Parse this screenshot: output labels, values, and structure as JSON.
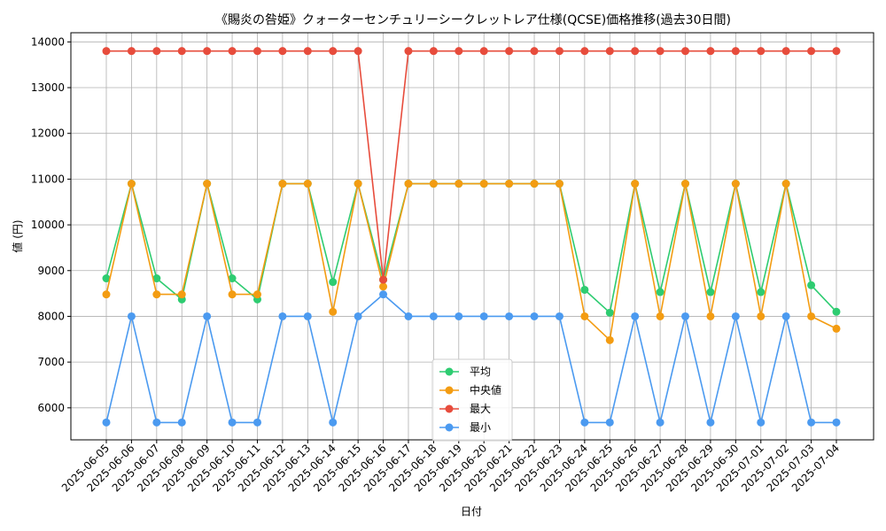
{
  "chart_data": {
    "type": "line",
    "title": "《賜炎の咎姫》クォーターセンチュリーシークレットレア仕様(QCSE)価格推移(過去30日間)",
    "xlabel": "日付",
    "ylabel": "値 (円)",
    "ylim": [
      5300,
      14200
    ],
    "yticks": [
      6000,
      7000,
      8000,
      9000,
      10000,
      11000,
      12000,
      13000,
      14000
    ],
    "grid": true,
    "legend_position": "bottom-center",
    "categories": [
      "2025-06-05",
      "2025-06-06",
      "2025-06-07",
      "2025-06-08",
      "2025-06-09",
      "2025-06-10",
      "2025-06-11",
      "2025-06-12",
      "2025-06-13",
      "2025-06-14",
      "2025-06-15",
      "2025-06-16",
      "2025-06-17",
      "2025-06-18",
      "2025-06-19",
      "2025-06-20",
      "2025-06-21",
      "2025-06-22",
      "2025-06-23",
      "2025-06-24",
      "2025-06-25",
      "2025-06-26",
      "2025-06-27",
      "2025-06-28",
      "2025-06-29",
      "2025-06-30",
      "2025-07-01",
      "2025-07-02",
      "2025-07-03",
      "2025-07-04"
    ],
    "series": [
      {
        "name": "平均",
        "color": "#2ecc71",
        "values": [
          8830,
          10900,
          8830,
          8370,
          10900,
          8830,
          8370,
          10900,
          10900,
          8750,
          10900,
          8800,
          10900,
          10900,
          10900,
          10900,
          10900,
          10900,
          10900,
          8580,
          8080,
          10900,
          8530,
          10900,
          8530,
          10900,
          8530,
          10900,
          8680,
          8100
        ]
      },
      {
        "name": "中央値",
        "color": "#f39c12",
        "values": [
          8480,
          10900,
          8480,
          8480,
          10900,
          8480,
          8480,
          10900,
          10900,
          8100,
          10900,
          8650,
          10900,
          10900,
          10900,
          10900,
          10900,
          10900,
          10900,
          8000,
          7480,
          10900,
          8000,
          10900,
          8000,
          10900,
          8000,
          10900,
          8000,
          7730
        ]
      },
      {
        "name": "最大",
        "color": "#e74c3c",
        "values": [
          13800,
          13800,
          13800,
          13800,
          13800,
          13800,
          13800,
          13800,
          13800,
          13800,
          13800,
          8800,
          13800,
          13800,
          13800,
          13800,
          13800,
          13800,
          13800,
          13800,
          13800,
          13800,
          13800,
          13800,
          13800,
          13800,
          13800,
          13800,
          13800,
          13800
        ]
      },
      {
        "name": "最小",
        "color": "#4b9af0",
        "values": [
          5680,
          8000,
          5680,
          5680,
          8000,
          5680,
          5680,
          8000,
          8000,
          5680,
          8000,
          8480,
          8000,
          8000,
          8000,
          8000,
          8000,
          8000,
          8000,
          5680,
          5680,
          8000,
          5680,
          8000,
          5680,
          8000,
          5680,
          8000,
          5680,
          5680
        ]
      }
    ]
  }
}
